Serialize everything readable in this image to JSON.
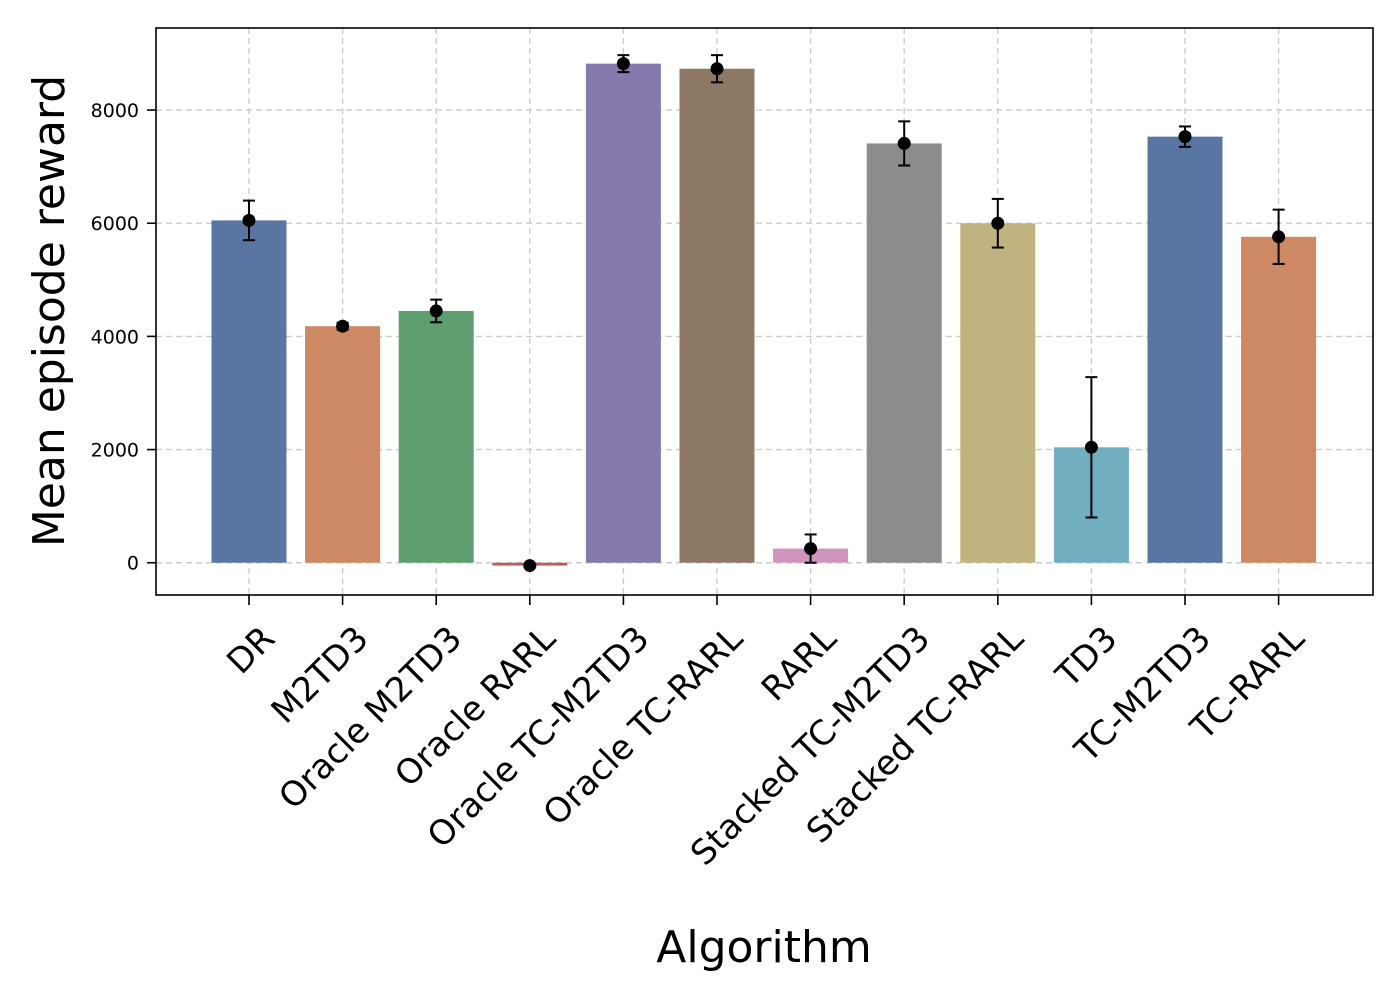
{
  "chart_data": {
    "type": "bar",
    "title": "",
    "xlabel": "Algorithm",
    "ylabel": "Mean episode reward",
    "ylim": [
      -570,
      9450
    ],
    "yticks": [
      0,
      2000,
      4000,
      6000,
      8000
    ],
    "grid": true,
    "categories": [
      "DR",
      "M2TD3",
      "Oracle M2TD3",
      "Oracle RARL",
      "Oracle TC-M2TD3",
      "Oracle TC-RARL",
      "RARL",
      "Stacked TC-M2TD3",
      "Stacked TC-RARL",
      "TD3",
      "TC-M2TD3",
      "TC-RARL"
    ],
    "values": [
      6050,
      4180,
      4450,
      -50,
      8820,
      8730,
      250,
      7410,
      6000,
      2040,
      7530,
      5760
    ],
    "errors": [
      350,
      60,
      200,
      20,
      150,
      240,
      250,
      390,
      430,
      1240,
      180,
      480
    ],
    "colors": [
      "#5975a4",
      "#cc8963",
      "#5f9e6e",
      "#b55d60",
      "#857aab",
      "#8d7866",
      "#d095bf",
      "#8c8c8c",
      "#c1b37f",
      "#71aec0",
      "#5975a4",
      "#cc8963"
    ]
  }
}
